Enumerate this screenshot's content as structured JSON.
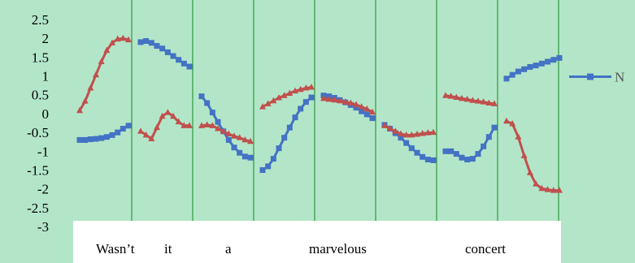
{
  "chart_data": {
    "type": "line",
    "title": "",
    "xlabel": "",
    "ylabel": "",
    "ylim": [
      -3,
      2.5
    ],
    "yticks": [
      2.5,
      2,
      1.5,
      1,
      0.5,
      0,
      -0.5,
      -1,
      -1.5,
      -2,
      -2.5,
      -3
    ],
    "ytick_labels": [
      "2.5",
      "2",
      "1.5",
      "1",
      "0.5",
      "0",
      "-0.5",
      "-1",
      "-1.5",
      "-2",
      "-2.5",
      "-3"
    ],
    "x_segments": 7,
    "grid": "vertical separators between segments",
    "legend": {
      "placement": "right",
      "entries": [
        "N"
      ]
    },
    "word_labels": [
      "Wasn’t",
      "it",
      "a",
      "marvelous",
      "concert"
    ],
    "series": [
      {
        "name": "N",
        "color": "#4472c4",
        "marker": "square",
        "segments": [
          [
            -0.68,
            -0.68,
            -0.66,
            -0.65,
            -0.63,
            -0.6,
            -0.55,
            -0.48,
            -0.38,
            -0.3
          ],
          [
            1.92,
            1.95,
            1.9,
            1.82,
            1.75,
            1.65,
            1.55,
            1.45,
            1.35,
            1.27
          ],
          [
            0.48,
            0.3,
            0.05,
            -0.2,
            -0.45,
            -0.68,
            -0.88,
            -1.02,
            -1.12,
            -1.15
          ],
          [
            -1.48,
            -1.38,
            -1.18,
            -0.9,
            -0.62,
            -0.35,
            -0.08,
            0.15,
            0.33,
            0.45
          ],
          [
            0.5,
            0.48,
            0.44,
            0.38,
            0.32,
            0.25,
            0.18,
            0.08,
            0.0,
            -0.1
          ],
          [
            -0.28,
            -0.38,
            -0.5,
            -0.62,
            -0.76,
            -0.9,
            -1.02,
            -1.13,
            -1.2,
            -1.22
          ],
          [
            -0.98,
            -0.98,
            -1.05,
            -1.15,
            -1.2,
            -1.18,
            -1.05,
            -0.85,
            -0.6,
            -0.35
          ],
          [
            0.95,
            1.05,
            1.14,
            1.2,
            1.26,
            1.3,
            1.35,
            1.4,
            1.45,
            1.5
          ]
        ]
      },
      {
        "name": "",
        "color": "#c0504d",
        "marker": "triangle",
        "segments": [
          [
            0.1,
            0.35,
            0.7,
            1.05,
            1.4,
            1.7,
            1.9,
            2.0,
            2.02,
            1.98
          ],
          [
            -0.45,
            -0.55,
            -0.65,
            -0.35,
            -0.05,
            0.05,
            -0.05,
            -0.2,
            -0.3,
            -0.3
          ],
          [
            -0.3,
            -0.28,
            -0.3,
            -0.38,
            -0.45,
            -0.52,
            -0.58,
            -0.62,
            -0.68,
            -0.72
          ],
          [
            0.2,
            0.28,
            0.36,
            0.44,
            0.5,
            0.56,
            0.62,
            0.66,
            0.7,
            0.72
          ],
          [
            0.42,
            0.4,
            0.38,
            0.36,
            0.33,
            0.3,
            0.26,
            0.2,
            0.14,
            0.06
          ],
          [
            -0.3,
            -0.38,
            -0.45,
            -0.52,
            -0.55,
            -0.55,
            -0.53,
            -0.51,
            -0.49,
            -0.48
          ],
          [
            0.5,
            0.48,
            0.45,
            0.42,
            0.4,
            0.37,
            0.35,
            0.33,
            0.3,
            0.28
          ],
          [
            -0.18,
            -0.25,
            -0.6,
            -1.1,
            -1.55,
            -1.85,
            -1.97,
            -2.0,
            -2.02,
            -2.02
          ]
        ]
      }
    ]
  }
}
